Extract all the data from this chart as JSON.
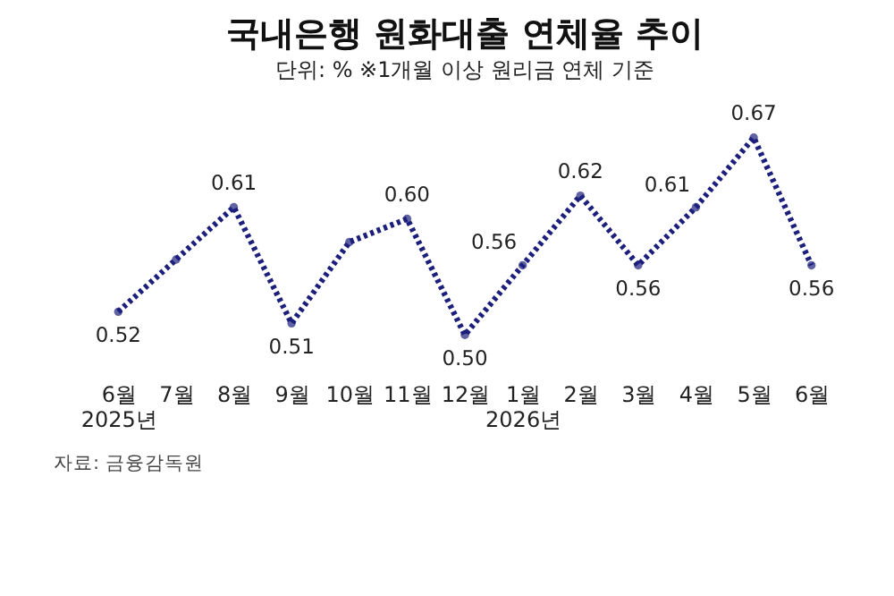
{
  "chart_data": {
    "type": "line",
    "title": "국내은행 원화대출 연체율 추이",
    "subtitle": "단위: % ※1개월 이상 원리금 연체 기준",
    "categories": [
      "6월\n2025년",
      "7월",
      "8월",
      "9월",
      "10월",
      "11월",
      "12월",
      "1월\n2026년",
      "2월",
      "3월",
      "4월",
      "5월",
      "6월"
    ],
    "series": [
      {
        "color": "#1c1f7c",
        "values": [
          0.52,
          0.565,
          0.61,
          0.51,
          0.58,
          0.6,
          0.5,
          0.56,
          0.62,
          0.56,
          0.61,
          0.67,
          0.56
        ],
        "value_labels": [
          "0.52",
          null,
          "0.61",
          "0.51",
          null,
          "0.60",
          "0.50",
          "0.56",
          "0.62",
          "0.56",
          "0.61",
          "0.67",
          "0.56"
        ]
      }
    ],
    "marker": "circle",
    "line_style": "dotted",
    "annotations": [
      "자료: 금융감독원"
    ]
  }
}
